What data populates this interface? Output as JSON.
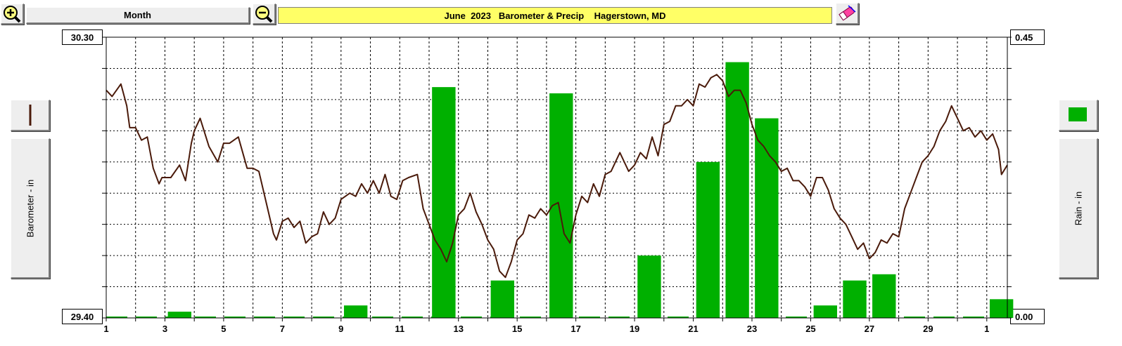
{
  "toolbar": {
    "zoom_in_icon": "zoom-in-magnifier-icon",
    "zoom_out_icon": "zoom-out-magnifier-icon",
    "period_label": "Month",
    "title": "June  2023   Barometer & Precip    Hagerstown, MD",
    "eraser_icon": "eraser-icon"
  },
  "axes": {
    "left_label": "Barometer - in",
    "right_label": "Rain - in",
    "left_top": "30.30",
    "left_bottom": "29.40",
    "right_top": "0.45",
    "right_bottom": "0.00"
  },
  "colors": {
    "barometer_line": "#4a1a0a",
    "rain_bar": "#00b000",
    "title_bg": "#ffff66",
    "grid": "#000000"
  },
  "chart_data": [
    {
      "type": "line",
      "title": "June  2023   Barometer & Precip    Hagerstown, MD",
      "ylabel": "Barometer - in",
      "ylim": [
        29.4,
        30.3
      ],
      "yticks": [
        "30.30",
        "30.20",
        "30.10",
        "30.00",
        "29.90",
        "29.80",
        "29.70",
        "29.60",
        "29.50",
        "29.40"
      ],
      "xlim": [
        1,
        31.7
      ],
      "xticks": [
        "1",
        "3",
        "5",
        "7",
        "9",
        "11",
        "13",
        "15",
        "17",
        "19",
        "21",
        "23",
        "25",
        "27",
        "29",
        "1"
      ],
      "grid": true,
      "x": [
        1,
        1.2,
        1.5,
        1.7,
        1.8,
        2.0,
        2.2,
        2.4,
        2.6,
        2.8,
        2.9,
        3.0,
        3.2,
        3.5,
        3.7,
        3.9,
        4.0,
        4.2,
        4.5,
        4.8,
        5.0,
        5.2,
        5.5,
        5.8,
        6.0,
        6.2,
        6.5,
        6.7,
        6.8,
        7.0,
        7.2,
        7.4,
        7.6,
        7.8,
        8.0,
        8.2,
        8.4,
        8.6,
        8.8,
        9.0,
        9.3,
        9.5,
        9.7,
        9.9,
        10.1,
        10.3,
        10.5,
        10.7,
        10.9,
        11.1,
        11.3,
        11.6,
        11.8,
        12.0,
        12.2,
        12.4,
        12.6,
        12.8,
        13.0,
        13.2,
        13.4,
        13.6,
        13.8,
        14.0,
        14.2,
        14.4,
        14.6,
        14.8,
        15.0,
        15.2,
        15.4,
        15.6,
        15.8,
        16.0,
        16.2,
        16.4,
        16.6,
        16.8,
        17.0,
        17.2,
        17.4,
        17.6,
        17.8,
        18.0,
        18.2,
        18.5,
        18.8,
        19.0,
        19.2,
        19.4,
        19.6,
        19.8,
        20.0,
        20.2,
        20.4,
        20.6,
        20.8,
        21.0,
        21.2,
        21.4,
        21.6,
        21.8,
        22.0,
        22.2,
        22.4,
        22.6,
        22.8,
        23.0,
        23.2,
        23.4,
        23.6,
        23.8,
        24.0,
        24.2,
        24.4,
        24.6,
        24.8,
        25.0,
        25.2,
        25.4,
        25.6,
        25.8,
        26.0,
        26.2,
        26.4,
        26.6,
        26.8,
        27.0,
        27.2,
        27.4,
        27.6,
        27.8,
        28.0,
        28.2,
        28.4,
        28.6,
        28.8,
        29.0,
        29.2,
        29.4,
        29.6,
        29.8,
        30.0,
        30.2,
        30.4,
        30.6,
        30.8,
        31.0,
        31.2,
        31.4,
        31.5,
        31.7
      ],
      "series": [
        {
          "values": [
            30.13,
            30.11,
            30.15,
            30.08,
            30.01,
            30.01,
            29.97,
            29.98,
            29.88,
            29.83,
            29.85,
            29.85,
            29.85,
            29.89,
            29.84,
            29.96,
            30.0,
            30.04,
            29.95,
            29.9,
            29.96,
            29.96,
            29.98,
            29.88,
            29.88,
            29.87,
            29.75,
            29.67,
            29.65,
            29.71,
            29.72,
            29.69,
            29.71,
            29.64,
            29.66,
            29.67,
            29.74,
            29.7,
            29.72,
            29.78,
            29.8,
            29.79,
            29.83,
            29.8,
            29.84,
            29.8,
            29.86,
            29.79,
            29.78,
            29.84,
            29.85,
            29.86,
            29.75,
            29.7,
            29.65,
            29.62,
            29.58,
            29.64,
            29.73,
            29.75,
            29.8,
            29.74,
            29.7,
            29.65,
            29.62,
            29.55,
            29.53,
            29.58,
            29.65,
            29.67,
            29.73,
            29.72,
            29.75,
            29.73,
            29.76,
            29.77,
            29.67,
            29.64,
            29.73,
            29.79,
            29.77,
            29.83,
            29.79,
            29.86,
            29.87,
            29.93,
            29.87,
            29.89,
            29.93,
            29.91,
            29.98,
            29.92,
            30.02,
            30.03,
            30.08,
            30.08,
            30.1,
            30.08,
            30.15,
            30.14,
            30.17,
            30.18,
            30.16,
            30.11,
            30.13,
            30.13,
            30.09,
            30.02,
            29.97,
            29.95,
            29.92,
            29.9,
            29.87,
            29.88,
            29.84,
            29.84,
            29.82,
            29.79,
            29.85,
            29.85,
            29.81,
            29.75,
            29.72,
            29.7,
            29.66,
            29.62,
            29.64,
            29.59,
            29.61,
            29.65,
            29.64,
            29.67,
            29.66,
            29.75,
            29.8,
            29.85,
            29.9,
            29.92,
            29.95,
            30.0,
            30.03,
            30.08,
            30.04,
            30.0,
            30.01,
            29.98,
            30.0,
            29.97,
            29.99,
            29.94,
            29.86,
            29.89
          ]
        }
      ]
    },
    {
      "type": "bar",
      "ylabel": "Rain - in",
      "ylim": [
        0,
        0.45
      ],
      "yticks": [
        "0.45",
        "0.40",
        "0.35",
        "0.30",
        "0.25",
        "0.20",
        "0.15",
        "0.10",
        "0.05",
        "0.00"
      ],
      "x": [
        3.5,
        9.5,
        12.5,
        14.5,
        16.5,
        19.5,
        21.5,
        22.5,
        23.5,
        25.5,
        26.5,
        27.5,
        31.5
      ],
      "values": [
        0.01,
        0.02,
        0.37,
        0.06,
        0.36,
        0.1,
        0.25,
        0.41,
        0.32,
        0.02,
        0.06,
        0.07,
        0.03
      ]
    }
  ]
}
